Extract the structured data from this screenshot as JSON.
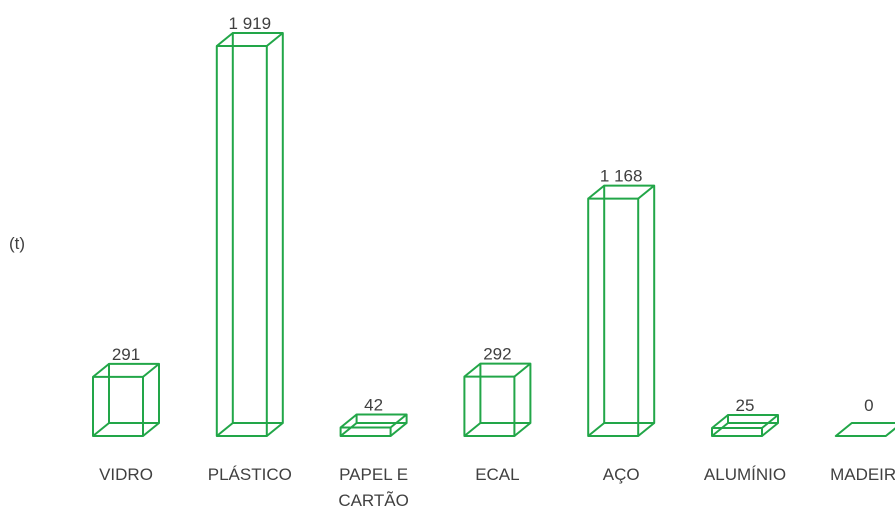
{
  "chart_data": {
    "type": "bar",
    "title": "",
    "xlabel": "",
    "ylabel": "(t)",
    "categories": [
      [
        "VIDRO"
      ],
      [
        "PLÁSTICO"
      ],
      [
        "PAPEL E",
        "CARTÃO"
      ],
      [
        "ECAL"
      ],
      [
        "AÇO"
      ],
      [
        "ALUMÍNIO"
      ],
      [
        "MADEIRA"
      ]
    ],
    "values": [
      291,
      1919,
      42,
      292,
      1168,
      25,
      0
    ],
    "value_labels": [
      "291",
      "1 919",
      "42",
      "292",
      "1 168",
      "25",
      "0"
    ],
    "ylim": [
      0,
      1919
    ],
    "grid": false,
    "legend": "none",
    "style": "3d wireframe box",
    "colors": {
      "bar_stroke": "#22a648",
      "text": "#404040"
    }
  }
}
